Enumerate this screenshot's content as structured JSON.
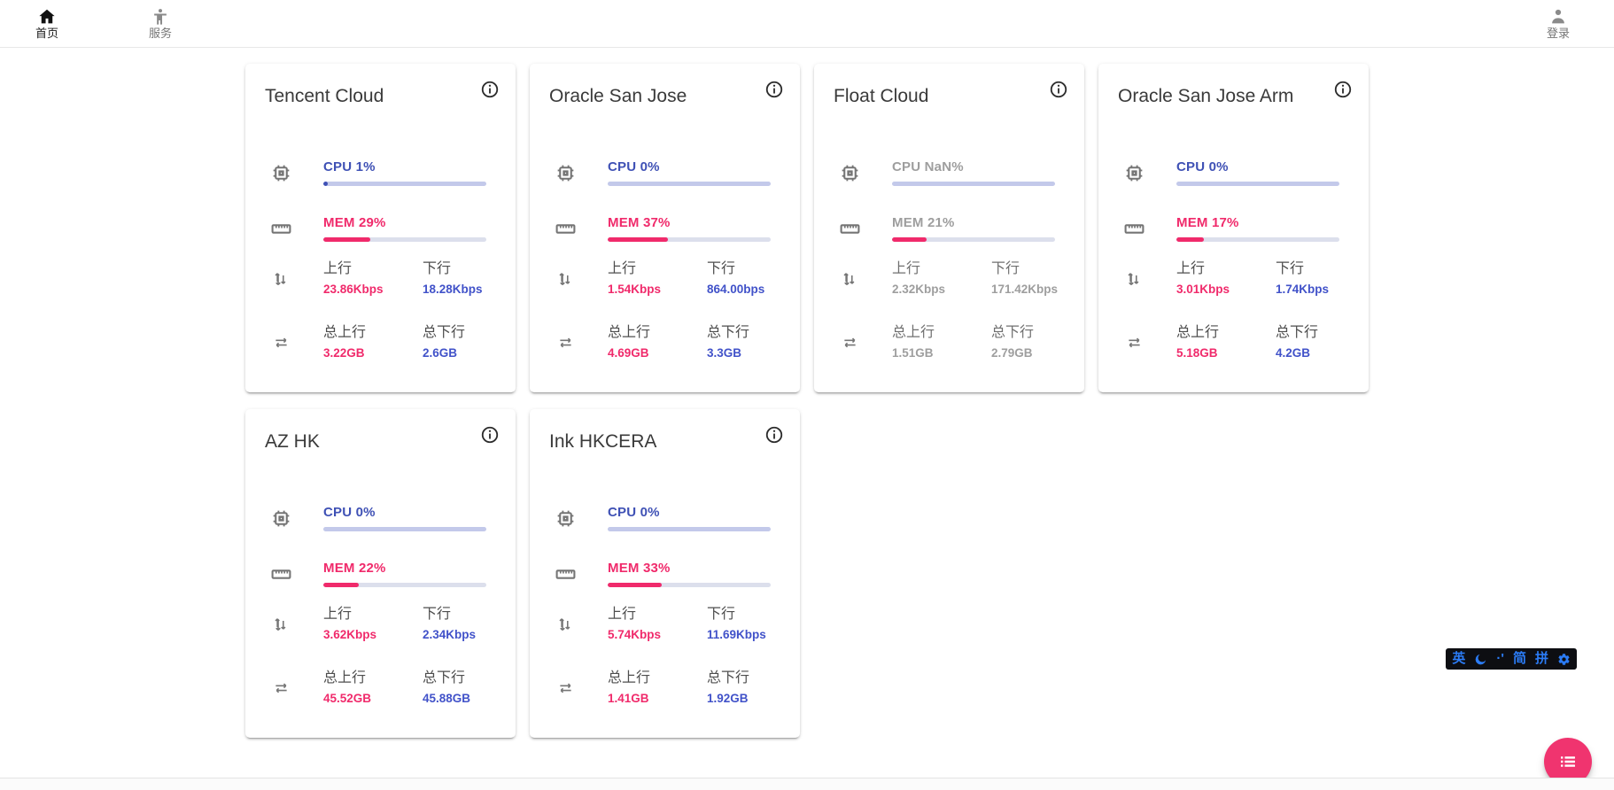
{
  "nav": {
    "home": "首页",
    "services": "服务",
    "login": "登录"
  },
  "labels": {
    "up": "上行",
    "down": "下行",
    "total_up": "总上行",
    "total_down": "总下行"
  },
  "servers": [
    {
      "name": "Tencent Cloud",
      "cpu_text": "CPU 1%",
      "cpu_pct": 1,
      "mem_text": "MEM 29%",
      "mem_pct": 29,
      "up": "23.86Kbps",
      "down": "18.28Kbps",
      "total_up": "3.22GB",
      "total_down": "2.6GB",
      "state": "online"
    },
    {
      "name": "Oracle San Jose",
      "cpu_text": "CPU 0%",
      "cpu_pct": 0,
      "mem_text": "MEM 37%",
      "mem_pct": 37,
      "up": "1.54Kbps",
      "down": "864.00bps",
      "total_up": "4.69GB",
      "total_down": "3.3GB",
      "state": "online"
    },
    {
      "name": "Float Cloud",
      "cpu_text": "CPU NaN%",
      "cpu_pct": null,
      "mem_text": "MEM 21%",
      "mem_pct": 21,
      "up": "2.32Kbps",
      "down": "171.42Kbps",
      "total_up": "1.51GB",
      "total_down": "2.79GB",
      "state": "offline"
    },
    {
      "name": "Oracle San Jose Arm",
      "cpu_text": "CPU 0%",
      "cpu_pct": 0,
      "mem_text": "MEM 17%",
      "mem_pct": 17,
      "up": "3.01Kbps",
      "down": "1.74Kbps",
      "total_up": "5.18GB",
      "total_down": "4.2GB",
      "state": "online"
    },
    {
      "name": "AZ HK",
      "cpu_text": "CPU 0%",
      "cpu_pct": 0,
      "mem_text": "MEM 22%",
      "mem_pct": 22,
      "up": "3.62Kbps",
      "down": "2.34Kbps",
      "total_up": "45.52GB",
      "total_down": "45.88GB",
      "state": "online"
    },
    {
      "name": "Ink HKCERA",
      "cpu_text": "CPU 0%",
      "cpu_pct": 0,
      "mem_text": "MEM 33%",
      "mem_pct": 33,
      "up": "5.74Kbps",
      "down": "11.69Kbps",
      "total_up": "1.41GB",
      "total_down": "1.92GB",
      "state": "online"
    }
  ],
  "ime_bar": {
    "items": [
      "英",
      "moon",
      "·'",
      "简",
      "拼",
      "gear"
    ],
    "lang": "英",
    "punct": "·'",
    "simplified": "简",
    "pinyin": "拼"
  },
  "colors": {
    "accent_blue": "#3f51b5",
    "value_blue": "#4152c9",
    "accent_pink": "#f02a6b",
    "fab_pink": "#f0346f",
    "icon_gray": "#757575",
    "offline_gray": "#9e9e9e"
  }
}
